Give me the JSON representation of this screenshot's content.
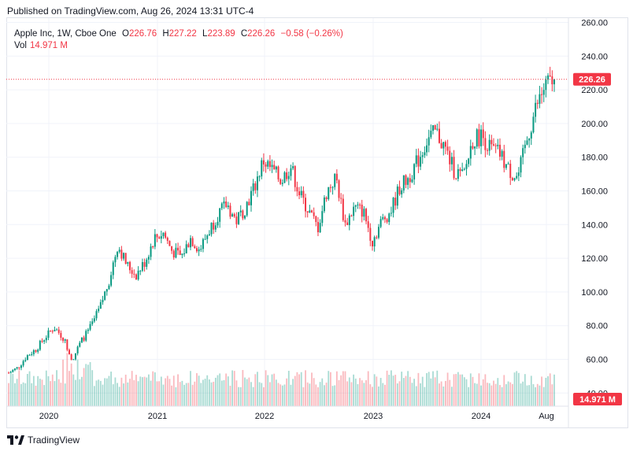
{
  "header": {
    "published": "Published on TradingView.com, Aug 26, 2024 13:31 UTC-4"
  },
  "legend": {
    "symbol": "Apple Inc, 1W, Cboe One",
    "open_label": "O",
    "open": "226.76",
    "high_label": "H",
    "high": "227.22",
    "low_label": "L",
    "low": "223.89",
    "close_label": "C",
    "close": "226.26",
    "change": "−0.58 (−0.26%)",
    "vol_label": "Vol",
    "vol_value": "14.971 M"
  },
  "price_badge": "226.26",
  "volume_badge": "14.971 M",
  "footer": {
    "brand": "TradingView"
  },
  "colors": {
    "up": "#089981",
    "down": "#f23645",
    "grid": "#f0f3fa",
    "axis_text": "#131722"
  },
  "chart_data": {
    "type": "candlestick",
    "interval": "1W",
    "y_ticks": [
      "40.00",
      "60.00",
      "80.00",
      "100.00",
      "120.00",
      "140.00",
      "160.00",
      "180.00",
      "200.00",
      "220.00",
      "240.00",
      "260.00"
    ],
    "x_ticks": [
      "2020",
      "2021",
      "2022",
      "2023",
      "2024",
      "Aug"
    ],
    "ylim": [
      38,
      264
    ],
    "last_close": 226.26,
    "approx_close_by_month": [
      [
        "2019-08",
        52
      ],
      [
        "2019-09",
        55
      ],
      [
        "2019-10",
        62
      ],
      [
        "2019-11",
        66
      ],
      [
        "2019-12",
        73
      ],
      [
        "2020-01",
        79
      ],
      [
        "2020-02",
        73
      ],
      [
        "2020-03",
        60
      ],
      [
        "2020-04",
        71
      ],
      [
        "2020-05",
        79
      ],
      [
        "2020-06",
        90
      ],
      [
        "2020-07",
        106
      ],
      [
        "2020-08",
        128
      ],
      [
        "2020-09",
        116
      ],
      [
        "2020-10",
        110
      ],
      [
        "2020-11",
        118
      ],
      [
        "2020-12",
        132
      ],
      [
        "2021-01",
        135
      ],
      [
        "2021-02",
        124
      ],
      [
        "2021-03",
        121
      ],
      [
        "2021-04",
        132
      ],
      [
        "2021-05",
        125
      ],
      [
        "2021-06",
        136
      ],
      [
        "2021-07",
        146
      ],
      [
        "2021-08",
        152
      ],
      [
        "2021-09",
        142
      ],
      [
        "2021-10",
        150
      ],
      [
        "2021-11",
        162
      ],
      [
        "2021-12",
        178
      ],
      [
        "2022-01",
        172
      ],
      [
        "2022-02",
        166
      ],
      [
        "2022-03",
        175
      ],
      [
        "2022-04",
        158
      ],
      [
        "2022-05",
        148
      ],
      [
        "2022-06",
        138
      ],
      [
        "2022-07",
        160
      ],
      [
        "2022-08",
        168
      ],
      [
        "2022-09",
        140
      ],
      [
        "2022-10",
        150
      ],
      [
        "2022-11",
        148
      ],
      [
        "2022-12",
        130
      ],
      [
        "2023-01",
        142
      ],
      [
        "2023-02",
        148
      ],
      [
        "2023-03",
        162
      ],
      [
        "2023-04",
        168
      ],
      [
        "2023-05",
        178
      ],
      [
        "2023-06",
        190
      ],
      [
        "2023-07",
        195
      ],
      [
        "2023-08",
        185
      ],
      [
        "2023-09",
        172
      ],
      [
        "2023-10",
        168
      ],
      [
        "2023-11",
        190
      ],
      [
        "2023-12",
        193
      ],
      [
        "2024-01",
        185
      ],
      [
        "2024-02",
        182
      ],
      [
        "2024-03",
        172
      ],
      [
        "2024-04",
        168
      ],
      [
        "2024-05",
        190
      ],
      [
        "2024-06",
        210
      ],
      [
        "2024-07",
        222
      ],
      [
        "2024-08",
        226.26
      ]
    ]
  }
}
